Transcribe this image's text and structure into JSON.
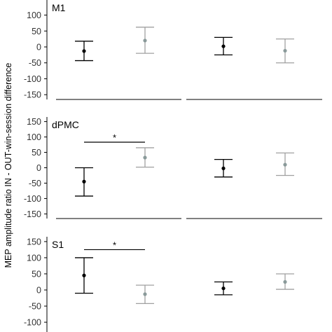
{
  "chart_data": {
    "type": "scatter",
    "ylabel": "MEP amplitude ratio IN - OUT-win-session difference",
    "yticks": [
      150,
      100,
      50,
      0,
      -50,
      -100,
      -150
    ],
    "ylim": [
      -165,
      165
    ],
    "colors": {
      "dark": "#000000",
      "light": "#a0a0a0",
      "light_point": "#8a9a9a",
      "axis": "#000000"
    },
    "panels": [
      {
        "title": "M1",
        "points": [
          {
            "group": 0,
            "color": "dark",
            "mean": -13,
            "lower": -43,
            "upper": 18
          },
          {
            "group": 0,
            "color": "light",
            "mean": 20,
            "lower": -20,
            "upper": 62
          },
          {
            "group": 1,
            "color": "dark",
            "mean": 2,
            "lower": -25,
            "upper": 30
          },
          {
            "group": 1,
            "color": "light",
            "mean": -12,
            "lower": -50,
            "upper": 25
          }
        ],
        "significance": []
      },
      {
        "title": "dPMC",
        "points": [
          {
            "group": 0,
            "color": "dark",
            "mean": -45,
            "lower": -92,
            "upper": 0
          },
          {
            "group": 0,
            "color": "light",
            "mean": 33,
            "lower": 2,
            "upper": 65
          },
          {
            "group": 1,
            "color": "dark",
            "mean": -2,
            "lower": -30,
            "upper": 27
          },
          {
            "group": 1,
            "color": "light",
            "mean": 10,
            "lower": -25,
            "upper": 48
          }
        ],
        "significance": [
          {
            "from": 0,
            "to": 1,
            "y": 83,
            "label": "*"
          }
        ]
      },
      {
        "title": "S1",
        "points": [
          {
            "group": 0,
            "color": "dark",
            "mean": 45,
            "lower": -10,
            "upper": 100
          },
          {
            "group": 0,
            "color": "light",
            "mean": -13,
            "lower": -42,
            "upper": 15
          },
          {
            "group": 1,
            "color": "dark",
            "mean": 5,
            "lower": -15,
            "upper": 25
          },
          {
            "group": 1,
            "color": "light",
            "mean": 25,
            "lower": 2,
            "upper": 50
          }
        ],
        "significance": [
          {
            "from": 0,
            "to": 1,
            "y": 125,
            "label": "*"
          }
        ]
      }
    ]
  }
}
